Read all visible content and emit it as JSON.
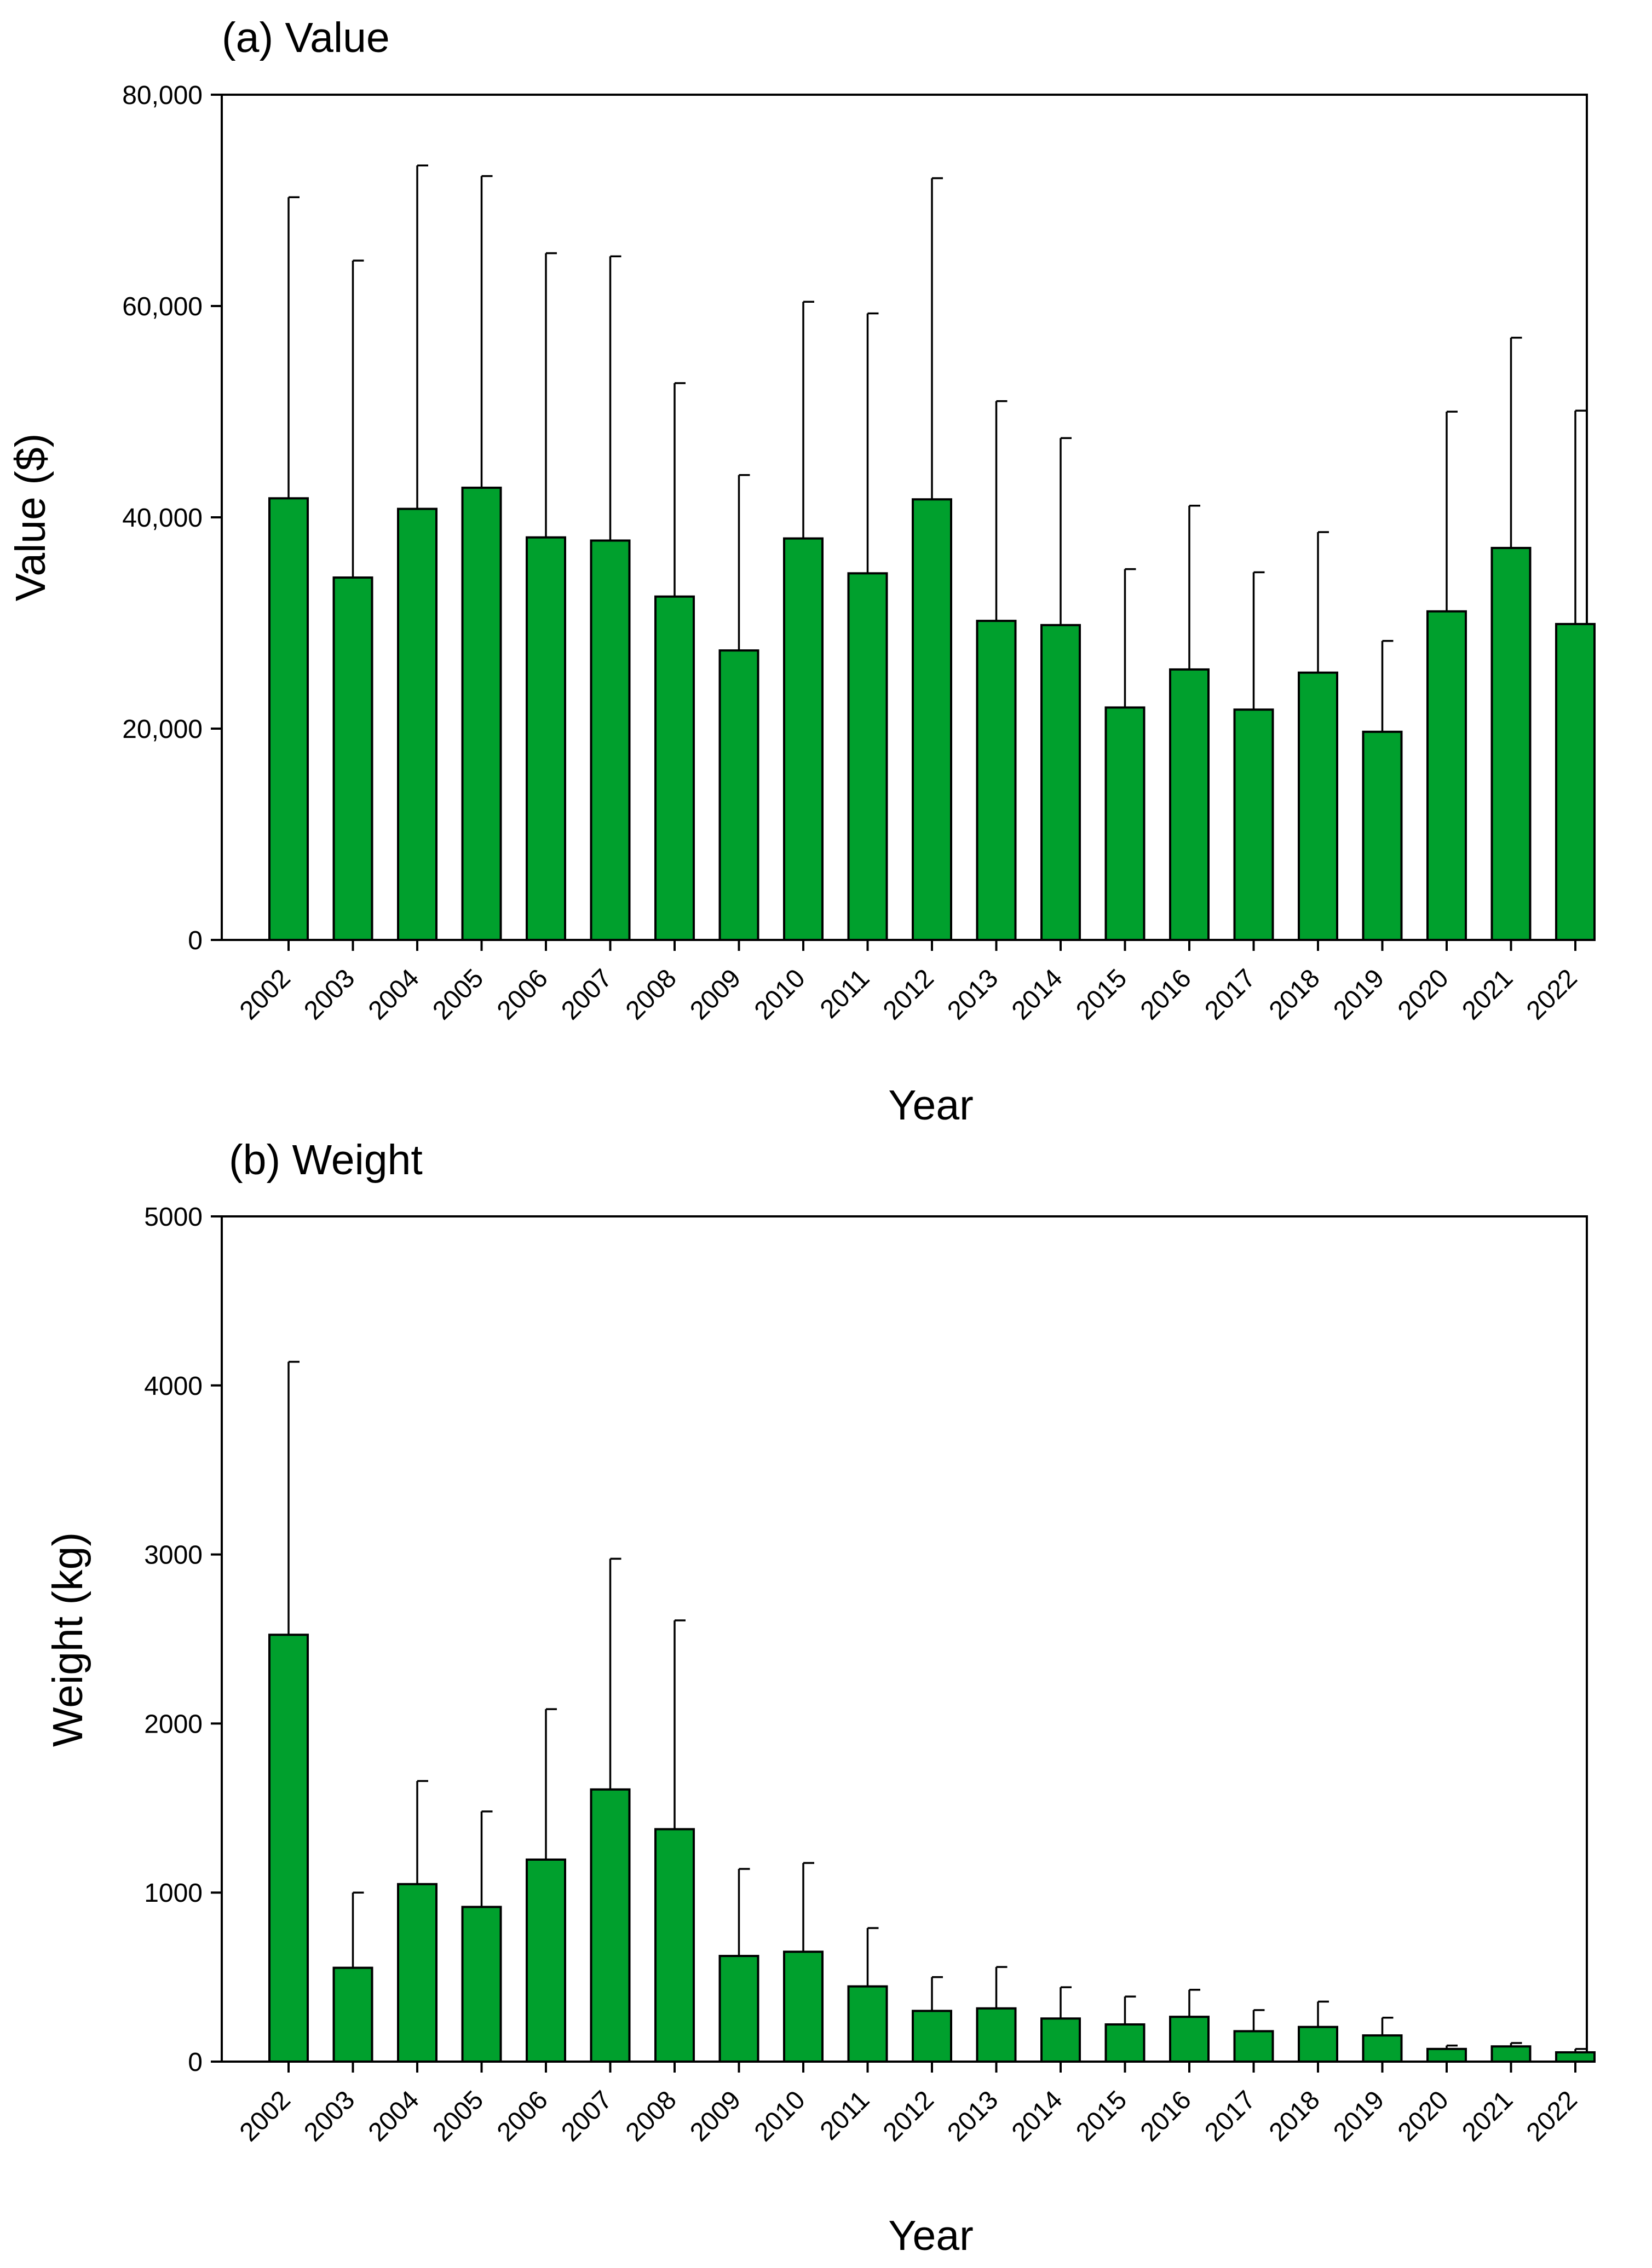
{
  "bar_color": "#00A02D",
  "chart_data": [
    {
      "type": "bar",
      "title": "(a) Value",
      "xlabel": "Year",
      "ylabel": "Value ($)",
      "ylim": [
        0,
        80000
      ],
      "y_ticks": [
        0,
        20000,
        40000,
        60000,
        80000
      ],
      "y_tick_labels": [
        "0",
        "20,000",
        "40,000",
        "60,000",
        "80,000"
      ],
      "categories": [
        "2002",
        "2003",
        "2004",
        "2005",
        "2006",
        "2007",
        "2008",
        "2009",
        "2010",
        "2011",
        "2012",
        "2013",
        "2014",
        "2015",
        "2016",
        "2017",
        "2018",
        "2019",
        "2020",
        "2021",
        "2022"
      ],
      "values": [
        41800,
        34300,
        40800,
        42800,
        38100,
        37800,
        32500,
        27400,
        38000,
        34700,
        41700,
        30200,
        29800,
        22000,
        25600,
        21800,
        25300,
        19700,
        31100,
        37100,
        29900
      ],
      "error_upper": [
        70300,
        64300,
        73300,
        72300,
        65000,
        64700,
        52700,
        44000,
        60400,
        59300,
        72100,
        51000,
        47500,
        35100,
        41100,
        34800,
        38600,
        28300,
        50000,
        57000,
        50100
      ]
    },
    {
      "type": "bar",
      "title": "(b) Weight",
      "xlabel": "Year",
      "ylabel": "Weight (kg)",
      "ylim": [
        0,
        5000
      ],
      "y_ticks": [
        0,
        1000,
        2000,
        3000,
        4000,
        5000
      ],
      "y_tick_labels": [
        "0",
        "1000",
        "2000",
        "3000",
        "4000",
        "5000"
      ],
      "categories": [
        "2002",
        "2003",
        "2004",
        "2005",
        "2006",
        "2007",
        "2008",
        "2009",
        "2010",
        "2011",
        "2012",
        "2013",
        "2014",
        "2015",
        "2016",
        "2017",
        "2018",
        "2019",
        "2020",
        "2021",
        "2022"
      ],
      "values": [
        2525,
        555,
        1050,
        915,
        1195,
        1610,
        1375,
        625,
        650,
        445,
        300,
        315,
        255,
        220,
        265,
        180,
        205,
        155,
        75,
        90,
        55
      ],
      "error_upper": [
        4140,
        1000,
        1660,
        1480,
        2085,
        2975,
        2610,
        1140,
        1175,
        790,
        500,
        560,
        440,
        385,
        425,
        305,
        355,
        260,
        95,
        110,
        75
      ]
    }
  ]
}
